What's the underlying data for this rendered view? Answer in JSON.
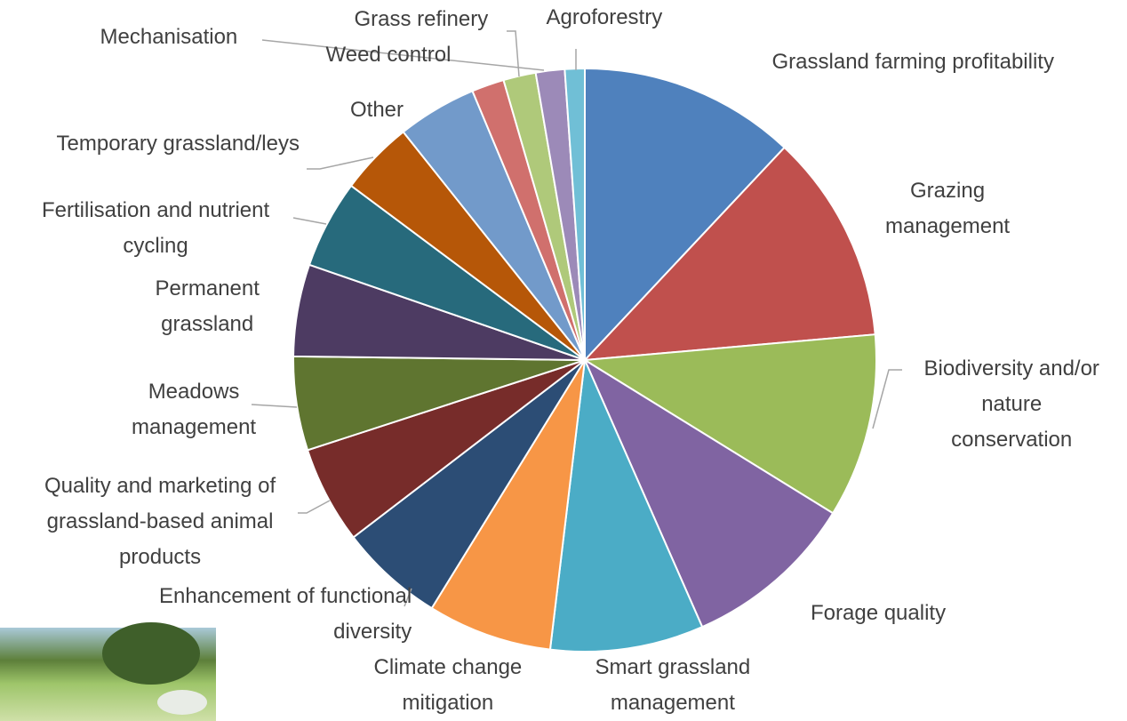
{
  "chart_data": {
    "type": "pie",
    "categories": [
      "Grassland farming profitability",
      "Grazing\nmanagement",
      "Biodiversity and/or\nnature\nconservation",
      "Forage quality",
      "Smart grassland\nmanagement",
      "Climate change\nmitigation",
      "Enhancement of functional\ndiversity",
      "Quality and marketing of\ngrassland-based animal\nproducts",
      "Meadows\nmanagement",
      "Permanent\ngrassland",
      "Fertilisation and nutrient\ncycling",
      "Temporary grassland/leys",
      "Other",
      "Weed control",
      "Grass refinery",
      "Mechanisation",
      "Agroforestry"
    ],
    "values": [
      12.0,
      11.6,
      10.2,
      9.6,
      8.5,
      6.9,
      5.8,
      5.4,
      5.2,
      5.1,
      4.9,
      4.1,
      4.4,
      1.8,
      1.8,
      1.6,
      1.1
    ],
    "colors": [
      "#4f81bd",
      "#c0504d",
      "#9bbb59",
      "#8064a2",
      "#4bacc6",
      "#f79646",
      "#2c4d75",
      "#772c2a",
      "#5f7530",
      "#4d3b62",
      "#276a7c",
      "#b65708",
      "#729aca",
      "#d0706d",
      "#afc97a",
      "#9c8ab8",
      "#70bfd6"
    ]
  }
}
